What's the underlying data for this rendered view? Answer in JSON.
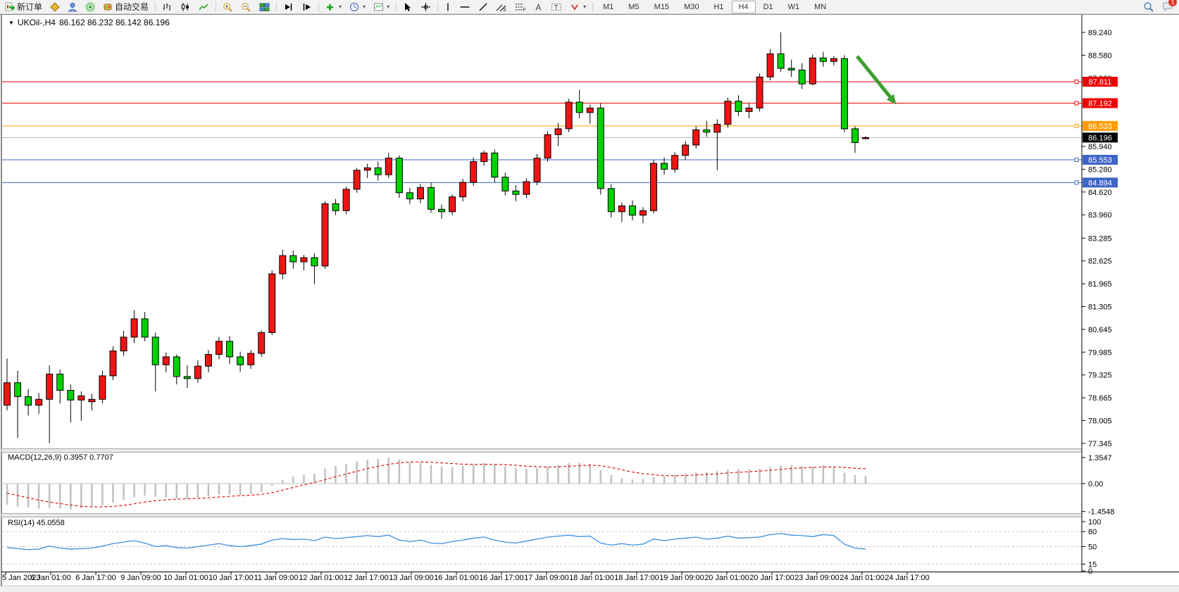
{
  "toolbar": {
    "new_order_label": "新订单",
    "autotrading_label": "自动交易",
    "timeframes": [
      "M1",
      "M5",
      "M15",
      "M30",
      "H1",
      "H4",
      "D1",
      "W1",
      "MN"
    ],
    "active_timeframe": "H4",
    "notification_count": "1",
    "icons": [
      "new-order-icon",
      "metaeditor-icon",
      "experts-icon",
      "signals-icon",
      "autotrading-icon",
      "bar-chart-icon",
      "candlestick-icon",
      "line-chart-icon",
      "zoom-in-icon",
      "zoom-out-icon",
      "tile-windows-icon",
      "auto-scroll-icon",
      "chart-shift-icon",
      "indicators-icon",
      "periods-icon",
      "templates-icon",
      "cursor-icon",
      "crosshair-icon",
      "vertical-line-icon",
      "horizontal-line-icon",
      "trendline-icon",
      "channel-icon",
      "fibonacci-icon",
      "text-icon",
      "label-icon",
      "arrows-icon",
      "search-icon",
      "notifications-icon"
    ]
  },
  "chart": {
    "symbol_period": "UKOil-,H4",
    "ohlc": "86.162 86.232 86.142 86.196",
    "dropdown_glyph": "▼"
  },
  "indicators": {
    "macd_label": "MACD(12,26,9) 0.3957 0.7707",
    "rsi_label": "RSI(14) 45.0558"
  },
  "colors": {
    "bull": "#f01414",
    "bear": "#00d200",
    "candle_border": "#000000",
    "level_red": "#ee0000",
    "level_orange": "#ff9c00",
    "level_blue": "#3e64c8",
    "current_line": "#b4b4b4",
    "current_label_bg": "#000000",
    "macd_hist": "#c0c0c0",
    "macd_signal": "#e00000",
    "rsi_line": "#3b8ee0",
    "rsi_levels": "#c8c8c8",
    "arrow": "#3f9e2f",
    "frame": "#8a8a8a"
  },
  "chart_data": {
    "type": "candlestick",
    "symbol": "UKOil-",
    "timeframe": "H4",
    "current_bar": {
      "open": "86.162",
      "high": "86.232",
      "low": "86.142",
      "close": "86.196"
    },
    "price_axis_ticks": [
      "89.240",
      "88.580",
      "87.920",
      "85.940",
      "85.280",
      "84.620",
      "83.960",
      "83.285",
      "82.625",
      "81.965",
      "81.305",
      "80.645",
      "79.985",
      "79.325",
      "78.665",
      "78.005",
      "77.345"
    ],
    "price_axis_anchor": {
      "top_tick": 89.24,
      "bottom_tick": 77.345
    },
    "levels": [
      {
        "price": 87.811,
        "label": "87.811",
        "color": "#ee0000",
        "type": "resistance",
        "marker": true
      },
      {
        "price": 87.192,
        "label": "87.192",
        "color": "#ee0000",
        "type": "resistance",
        "marker": true
      },
      {
        "price": 86.533,
        "label": "86.533",
        "color": "#ff9c00",
        "type": "pivot",
        "marker": true
      },
      {
        "price": 86.196,
        "label": "86.196",
        "color": "#000000",
        "type": "current-price",
        "marker": false
      },
      {
        "price": 85.553,
        "label": "85.553",
        "color": "#3e64c8",
        "type": "support",
        "marker": true
      },
      {
        "price": 84.894,
        "label": "84.894",
        "color": "#3e64c8",
        "type": "support",
        "marker": true
      }
    ],
    "time_labels": [
      "5 Jan 2023",
      "6 Jan 01:00",
      "6 Jan 17:00",
      "9 Jan 09:00",
      "10 Jan 01:00",
      "10 Jan 17:00",
      "11 Jan 09:00",
      "12 Jan 01:00",
      "12 Jan 17:00",
      "13 Jan 09:00",
      "16 Jan 01:00",
      "16 Jan 17:00",
      "17 Jan 09:00",
      "18 Jan 01:00",
      "18 Jan 17:00",
      "19 Jan 09:00",
      "20 Jan 01:00",
      "20 Jan 17:00",
      "23 Jan 09:00",
      "24 Jan 01:00",
      "24 Jan 17:00"
    ],
    "label_every_n_bars": 4,
    "candles": [
      [
        78.45,
        79.8,
        78.3,
        79.1
      ],
      [
        79.1,
        79.45,
        77.5,
        78.7
      ],
      [
        78.7,
        78.92,
        78.15,
        78.45
      ],
      [
        78.45,
        78.8,
        78.2,
        78.62
      ],
      [
        78.62,
        79.6,
        77.35,
        79.35
      ],
      [
        79.35,
        79.48,
        78.5,
        78.88
      ],
      [
        78.88,
        79.05,
        77.95,
        78.6
      ],
      [
        78.6,
        78.85,
        78.0,
        78.72
      ],
      [
        78.55,
        78.78,
        78.3,
        78.62
      ],
      [
        78.62,
        79.45,
        78.5,
        79.3
      ],
      [
        79.3,
        80.15,
        79.18,
        80.02
      ],
      [
        80.02,
        80.6,
        79.88,
        80.42
      ],
      [
        80.42,
        81.2,
        80.25,
        80.95
      ],
      [
        80.95,
        81.15,
        80.3,
        80.42
      ],
      [
        80.42,
        80.55,
        78.85,
        79.62
      ],
      [
        79.62,
        79.98,
        79.4,
        79.85
      ],
      [
        79.85,
        79.92,
        79.05,
        79.28
      ],
      [
        79.28,
        79.6,
        78.95,
        79.22
      ],
      [
        79.22,
        79.75,
        79.1,
        79.58
      ],
      [
        79.58,
        80.05,
        79.4,
        79.92
      ],
      [
        79.92,
        80.42,
        79.78,
        80.3
      ],
      [
        80.3,
        80.45,
        79.65,
        79.85
      ],
      [
        79.85,
        80.0,
        79.42,
        79.62
      ],
      [
        79.62,
        80.05,
        79.5,
        79.95
      ],
      [
        79.95,
        80.62,
        79.85,
        80.55
      ],
      [
        80.55,
        82.35,
        80.48,
        82.25
      ],
      [
        82.25,
        82.95,
        82.1,
        82.78
      ],
      [
        82.78,
        82.92,
        82.4,
        82.6
      ],
      [
        82.6,
        82.8,
        82.35,
        82.72
      ],
      [
        82.72,
        82.85,
        81.95,
        82.48
      ],
      [
        82.48,
        84.35,
        82.4,
        84.28
      ],
      [
        84.28,
        84.42,
        83.95,
        84.08
      ],
      [
        84.08,
        84.78,
        83.98,
        84.7
      ],
      [
        84.7,
        85.32,
        84.6,
        85.25
      ],
      [
        85.25,
        85.44,
        85.02,
        85.32
      ],
      [
        85.32,
        85.5,
        84.95,
        85.12
      ],
      [
        85.12,
        85.75,
        85.02,
        85.6
      ],
      [
        85.6,
        85.68,
        84.45,
        84.6
      ],
      [
        84.6,
        84.74,
        84.28,
        84.42
      ],
      [
        84.42,
        84.85,
        84.3,
        84.75
      ],
      [
        84.75,
        84.88,
        84.02,
        84.12
      ],
      [
        84.12,
        84.26,
        83.85,
        84.05
      ],
      [
        84.05,
        84.55,
        83.95,
        84.48
      ],
      [
        84.48,
        85.0,
        84.35,
        84.9
      ],
      [
        84.9,
        85.62,
        84.8,
        85.5
      ],
      [
        85.5,
        85.82,
        85.38,
        85.75
      ],
      [
        85.75,
        85.85,
        84.9,
        85.05
      ],
      [
        85.05,
        85.18,
        84.52,
        84.65
      ],
      [
        84.65,
        84.82,
        84.35,
        84.55
      ],
      [
        84.55,
        85.02,
        84.45,
        84.92
      ],
      [
        84.92,
        85.72,
        84.82,
        85.6
      ],
      [
        85.6,
        86.38,
        85.5,
        86.28
      ],
      [
        86.28,
        86.62,
        85.95,
        86.45
      ],
      [
        86.45,
        87.32,
        86.35,
        87.22
      ],
      [
        87.22,
        87.58,
        86.75,
        86.92
      ],
      [
        86.92,
        87.15,
        86.6,
        87.05
      ],
      [
        87.05,
        87.18,
        84.55,
        84.72
      ],
      [
        84.72,
        84.85,
        83.88,
        84.05
      ],
      [
        84.05,
        84.32,
        83.75,
        84.22
      ],
      [
        84.22,
        84.38,
        83.8,
        83.95
      ],
      [
        83.95,
        84.18,
        83.72,
        84.08
      ],
      [
        84.08,
        85.55,
        84.0,
        85.45
      ],
      [
        85.45,
        85.62,
        85.12,
        85.28
      ],
      [
        85.28,
        85.78,
        85.18,
        85.68
      ],
      [
        85.68,
        86.1,
        85.55,
        85.98
      ],
      [
        85.98,
        86.52,
        85.88,
        86.42
      ],
      [
        86.42,
        86.68,
        86.22,
        86.35
      ],
      [
        86.35,
        86.72,
        85.25,
        86.58
      ],
      [
        86.58,
        87.35,
        86.48,
        87.25
      ],
      [
        87.25,
        87.42,
        86.82,
        86.95
      ],
      [
        86.95,
        87.18,
        86.75,
        87.05
      ],
      [
        87.05,
        88.05,
        86.95,
        87.95
      ],
      [
        87.95,
        88.75,
        87.85,
        88.62
      ],
      [
        88.62,
        89.24,
        88.1,
        88.2
      ],
      [
        88.2,
        88.45,
        87.95,
        88.15
      ],
      [
        88.15,
        88.35,
        87.6,
        87.75
      ],
      [
        87.75,
        88.6,
        87.7,
        88.5
      ],
      [
        88.5,
        88.68,
        88.25,
        88.4
      ],
      [
        88.4,
        88.55,
        88.28,
        88.48
      ],
      [
        88.48,
        88.58,
        86.35,
        86.45
      ],
      [
        86.45,
        86.52,
        85.75,
        86.05
      ],
      [
        86.162,
        86.232,
        86.142,
        86.196
      ]
    ],
    "macd": {
      "params": "12,26,9",
      "value": 0.3957,
      "signal_value": 0.7707,
      "scale_labels": [
        "1.3547",
        "0.00",
        "-1.4548"
      ],
      "scale_values": [
        1.3547,
        0.0,
        -1.4548
      ],
      "histogram": [
        -1.1,
        -1.18,
        -1.24,
        -1.3,
        -1.26,
        -1.3,
        -1.34,
        -1.28,
        -1.22,
        -1.14,
        -1.0,
        -0.86,
        -0.72,
        -0.62,
        -0.68,
        -0.72,
        -0.78,
        -0.8,
        -0.74,
        -0.66,
        -0.58,
        -0.56,
        -0.6,
        -0.54,
        -0.44,
        -0.12,
        0.18,
        0.36,
        0.46,
        0.52,
        0.78,
        0.92,
        1.02,
        1.16,
        1.24,
        1.28,
        1.35,
        1.26,
        1.12,
        1.08,
        0.98,
        0.9,
        0.88,
        0.92,
        1.0,
        1.06,
        1.0,
        0.9,
        0.8,
        0.76,
        0.8,
        0.88,
        0.98,
        1.06,
        1.08,
        1.02,
        0.7,
        0.44,
        0.28,
        0.22,
        0.24,
        0.34,
        0.4,
        0.46,
        0.52,
        0.58,
        0.6,
        0.64,
        0.72,
        0.74,
        0.74,
        0.76,
        0.86,
        0.94,
        0.96,
        0.92,
        0.88,
        0.96,
        0.9,
        0.56,
        0.44,
        0.3957
      ],
      "signal": [
        -0.5,
        -0.62,
        -0.74,
        -0.86,
        -0.96,
        -1.04,
        -1.12,
        -1.18,
        -1.21,
        -1.21,
        -1.19,
        -1.13,
        -1.05,
        -0.96,
        -0.89,
        -0.84,
        -0.81,
        -0.79,
        -0.77,
        -0.74,
        -0.7,
        -0.66,
        -0.63,
        -0.6,
        -0.56,
        -0.47,
        -0.34,
        -0.2,
        -0.06,
        0.06,
        0.2,
        0.36,
        0.5,
        0.64,
        0.78,
        0.9,
        1.0,
        1.08,
        1.12,
        1.13,
        1.11,
        1.08,
        1.04,
        1.01,
        1.0,
        1.0,
        1.0,
        0.99,
        0.95,
        0.91,
        0.88,
        0.86,
        0.87,
        0.9,
        0.93,
        0.96,
        0.93,
        0.84,
        0.72,
        0.6,
        0.52,
        0.46,
        0.42,
        0.41,
        0.42,
        0.45,
        0.48,
        0.51,
        0.55,
        0.59,
        0.62,
        0.65,
        0.69,
        0.74,
        0.79,
        0.82,
        0.84,
        0.86,
        0.87,
        0.84,
        0.8,
        0.7707
      ]
    },
    "rsi": {
      "params": "14",
      "value": 45.0558,
      "scale_labels": [
        "100",
        "80",
        "50",
        "15",
        "0"
      ],
      "level_lines": [
        80,
        50,
        15
      ],
      "values": [
        48,
        46,
        44,
        45,
        51,
        47,
        45,
        46,
        47,
        51,
        56,
        59,
        62,
        57,
        50,
        52,
        48,
        47,
        50,
        53,
        56,
        52,
        50,
        52,
        55,
        63,
        66,
        64,
        65,
        62,
        69,
        66,
        68,
        70,
        72,
        70,
        73,
        63,
        60,
        63,
        57,
        56,
        60,
        63,
        67,
        69,
        63,
        59,
        57,
        61,
        65,
        69,
        71,
        73,
        70,
        71,
        57,
        53,
        56,
        53,
        55,
        65,
        62,
        65,
        67,
        69,
        65,
        67,
        71,
        67,
        68,
        69,
        74,
        76,
        73,
        72,
        70,
        74,
        72,
        55,
        47,
        45.06
      ]
    },
    "annotation_arrow": {
      "x1_index": 80.2,
      "y1_price": 88.55,
      "x2_index": 83.9,
      "y2_price": 87.15,
      "color": "#3f9e2f",
      "direction": "down-right"
    }
  }
}
